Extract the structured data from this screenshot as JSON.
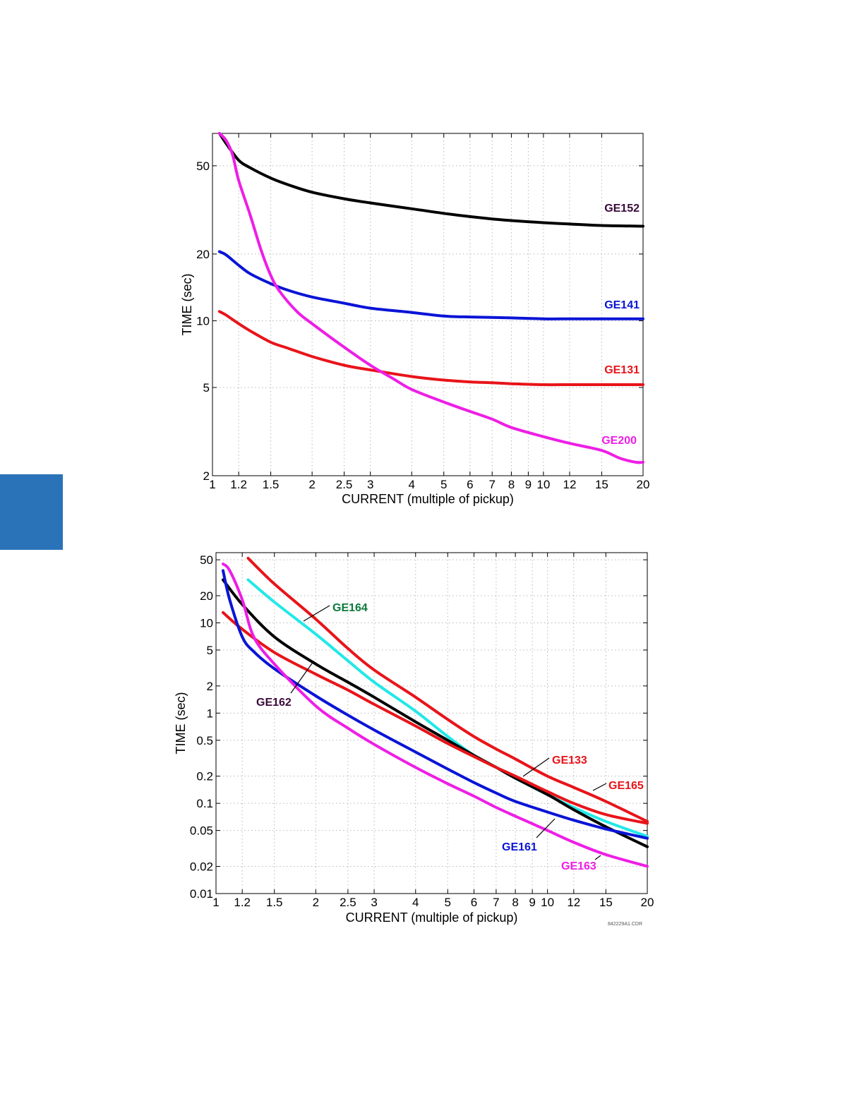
{
  "colors": {
    "side_tab": "#2a73b8",
    "black": "#000000",
    "blue": "#0a14d6",
    "red": "#e8141a",
    "magenta": "#ee1ee6",
    "cyan": "#22e8e8",
    "label_dark": "#3a0a3a",
    "label_green": "#0a7a3a"
  },
  "chart_data": [
    {
      "type": "line",
      "xlabel": "CURRENT (multiple of pickup)",
      "ylabel": "TIME (sec)",
      "x_scale": "log",
      "y_scale": "log",
      "xlim": [
        1,
        20
      ],
      "ylim": [
        2,
        70
      ],
      "grid": true,
      "xticks": [
        1,
        1.2,
        1.5,
        2,
        2.5,
        3,
        4,
        5,
        6,
        7,
        8,
        9,
        10,
        12,
        15,
        20
      ],
      "xtick_labels": [
        "1",
        "1.2",
        "1.5",
        "2",
        "2.5",
        "3",
        "4",
        "5",
        "6",
        "7",
        "8",
        "9",
        "10",
        "12",
        "15",
        "20"
      ],
      "yticks": [
        2,
        5,
        10,
        20,
        50
      ],
      "ytick_labels": [
        "2",
        "5",
        "10",
        "20",
        "50"
      ],
      "series": [
        {
          "name": "GE152",
          "color": "#000000",
          "label_color": "#3a0a3a",
          "x": [
            1.05,
            1.1,
            1.2,
            1.3,
            1.5,
            1.7,
            2,
            2.5,
            3,
            4,
            5,
            6,
            7,
            8,
            10,
            12,
            15,
            20
          ],
          "y": [
            70,
            63,
            53,
            49,
            44,
            41,
            38,
            35.5,
            34,
            32,
            30.5,
            29.5,
            28.8,
            28.3,
            27.7,
            27.3,
            26.9,
            26.7
          ]
        },
        {
          "name": "GE141",
          "color": "#0a14d6",
          "label_color": "#0a14d6",
          "x": [
            1.05,
            1.1,
            1.2,
            1.3,
            1.5,
            1.7,
            2,
            2.5,
            3,
            4,
            5,
            6,
            7,
            8,
            10,
            12,
            15,
            20
          ],
          "y": [
            20.5,
            19.8,
            17.8,
            16.3,
            14.7,
            13.7,
            12.8,
            12,
            11.4,
            10.9,
            10.5,
            10.4,
            10.35,
            10.3,
            10.2,
            10.2,
            10.2,
            10.2
          ]
        },
        {
          "name": "GE131",
          "color": "#e8141a",
          "label_color": "#e8141a",
          "x": [
            1.05,
            1.1,
            1.2,
            1.3,
            1.5,
            1.7,
            2,
            2.5,
            3,
            4,
            5,
            6,
            7,
            8,
            10,
            12,
            15,
            20
          ],
          "y": [
            11,
            10.6,
            9.7,
            9,
            8,
            7.5,
            6.9,
            6.3,
            6,
            5.6,
            5.4,
            5.3,
            5.25,
            5.2,
            5.15,
            5.15,
            5.15,
            5.15
          ]
        },
        {
          "name": "GE200",
          "color": "#ee1ee6",
          "label_color": "#ee1ee6",
          "x": [
            1.05,
            1.1,
            1.15,
            1.2,
            1.3,
            1.4,
            1.5,
            1.6,
            1.8,
            2,
            2.5,
            3,
            3.5,
            4,
            5,
            6,
            7,
            8,
            10,
            12,
            15,
            17,
            19,
            20
          ],
          "y": [
            70,
            65,
            56,
            43,
            30,
            21,
            16,
            13.5,
            11,
            9.7,
            7.6,
            6.3,
            5.5,
            4.9,
            4.3,
            3.9,
            3.6,
            3.3,
            3.0,
            2.8,
            2.6,
            2.4,
            2.3,
            2.3
          ]
        }
      ],
      "annotations": [
        "GE152",
        "GE141",
        "GE131",
        "GE200"
      ]
    },
    {
      "type": "line",
      "xlabel": "CURRENT (multiple of pickup)",
      "ylabel": "TIME (sec)",
      "x_scale": "log",
      "y_scale": "log",
      "xlim": [
        1,
        20
      ],
      "ylim": [
        0.01,
        60
      ],
      "grid": true,
      "xticks": [
        1,
        1.2,
        1.5,
        2,
        2.5,
        3,
        4,
        5,
        6,
        7,
        8,
        9,
        10,
        12,
        15,
        20
      ],
      "xtick_labels": [
        "1",
        "1.2",
        "1.5",
        "2",
        "2.5",
        "3",
        "4",
        "5",
        "6",
        "7",
        "8",
        "9",
        "10",
        "12",
        "15",
        "20"
      ],
      "yticks": [
        0.01,
        0.02,
        0.05,
        0.1,
        0.2,
        0.5,
        1,
        2,
        5,
        10,
        20,
        50
      ],
      "ytick_labels": [
        "0.01",
        "0.02",
        "0.05",
        "0.1",
        "0.2",
        "0.5",
        "1",
        "2",
        "5",
        "10",
        "20",
        "50"
      ],
      "series": [
        {
          "name": "GE165",
          "color": "#e8141a",
          "label_color": "#e8141a",
          "x": [
            1.25,
            1.5,
            2,
            2.5,
            3,
            4,
            5,
            6,
            7,
            8,
            10,
            12,
            15,
            20
          ],
          "y": [
            52,
            27,
            11,
            5.2,
            3.0,
            1.5,
            0.85,
            0.55,
            0.4,
            0.31,
            0.2,
            0.15,
            0.105,
            0.063
          ]
        },
        {
          "name": "GE164",
          "color": "#22e8e8",
          "label_color": "#0a7a3a",
          "x": [
            1.25,
            1.5,
            2,
            2.5,
            3,
            4,
            5,
            6,
            7,
            8,
            10,
            12,
            15,
            20
          ],
          "y": [
            30,
            17,
            7.5,
            3.8,
            2.2,
            1.05,
            0.55,
            0.34,
            0.25,
            0.19,
            0.125,
            0.09,
            0.063,
            0.043
          ]
        },
        {
          "name": "GE162",
          "color": "#000000",
          "label_color": "#3a0a3a",
          "x": [
            1.05,
            1.2,
            1.5,
            2,
            2.5,
            3,
            4,
            5,
            6,
            7,
            8,
            10,
            12,
            15,
            20
          ],
          "y": [
            30,
            16,
            7.0,
            3.5,
            2.2,
            1.5,
            0.8,
            0.5,
            0.34,
            0.25,
            0.19,
            0.125,
            0.085,
            0.055,
            0.033
          ]
        },
        {
          "name": "GE133",
          "color": "#e8141a",
          "label_color": "#e8141a",
          "x": [
            1.05,
            1.2,
            1.5,
            2,
            2.5,
            3,
            4,
            5,
            6,
            7,
            8,
            10,
            12,
            15,
            20
          ],
          "y": [
            13,
            8.5,
            4.7,
            2.7,
            1.8,
            1.25,
            0.72,
            0.46,
            0.33,
            0.25,
            0.2,
            0.135,
            0.1,
            0.075,
            0.06
          ]
        },
        {
          "name": "GE161",
          "color": "#0a14d6",
          "label_color": "#0a14d6",
          "x": [
            1.05,
            1.1,
            1.2,
            1.3,
            1.5,
            2,
            2.5,
            3,
            4,
            5,
            6,
            7,
            8,
            10,
            12,
            15,
            20
          ],
          "y": [
            38,
            18,
            7.0,
            4.8,
            3.1,
            1.55,
            0.95,
            0.65,
            0.37,
            0.24,
            0.17,
            0.13,
            0.105,
            0.08,
            0.065,
            0.052,
            0.041
          ]
        },
        {
          "name": "GE163",
          "color": "#ee1ee6",
          "label_color": "#ee1ee6",
          "x": [
            1.05,
            1.1,
            1.2,
            1.3,
            1.5,
            2,
            2.5,
            3,
            4,
            5,
            6,
            7,
            8,
            10,
            12,
            15,
            20
          ],
          "y": [
            45,
            38,
            18,
            7.0,
            3.5,
            1.2,
            0.68,
            0.45,
            0.25,
            0.165,
            0.12,
            0.09,
            0.072,
            0.05,
            0.037,
            0.027,
            0.02
          ]
        }
      ],
      "annotations": [
        "GE164",
        "GE162",
        "GE133",
        "GE165",
        "GE161",
        "GE163"
      ],
      "figure_code": "842229A1.CDR"
    }
  ]
}
